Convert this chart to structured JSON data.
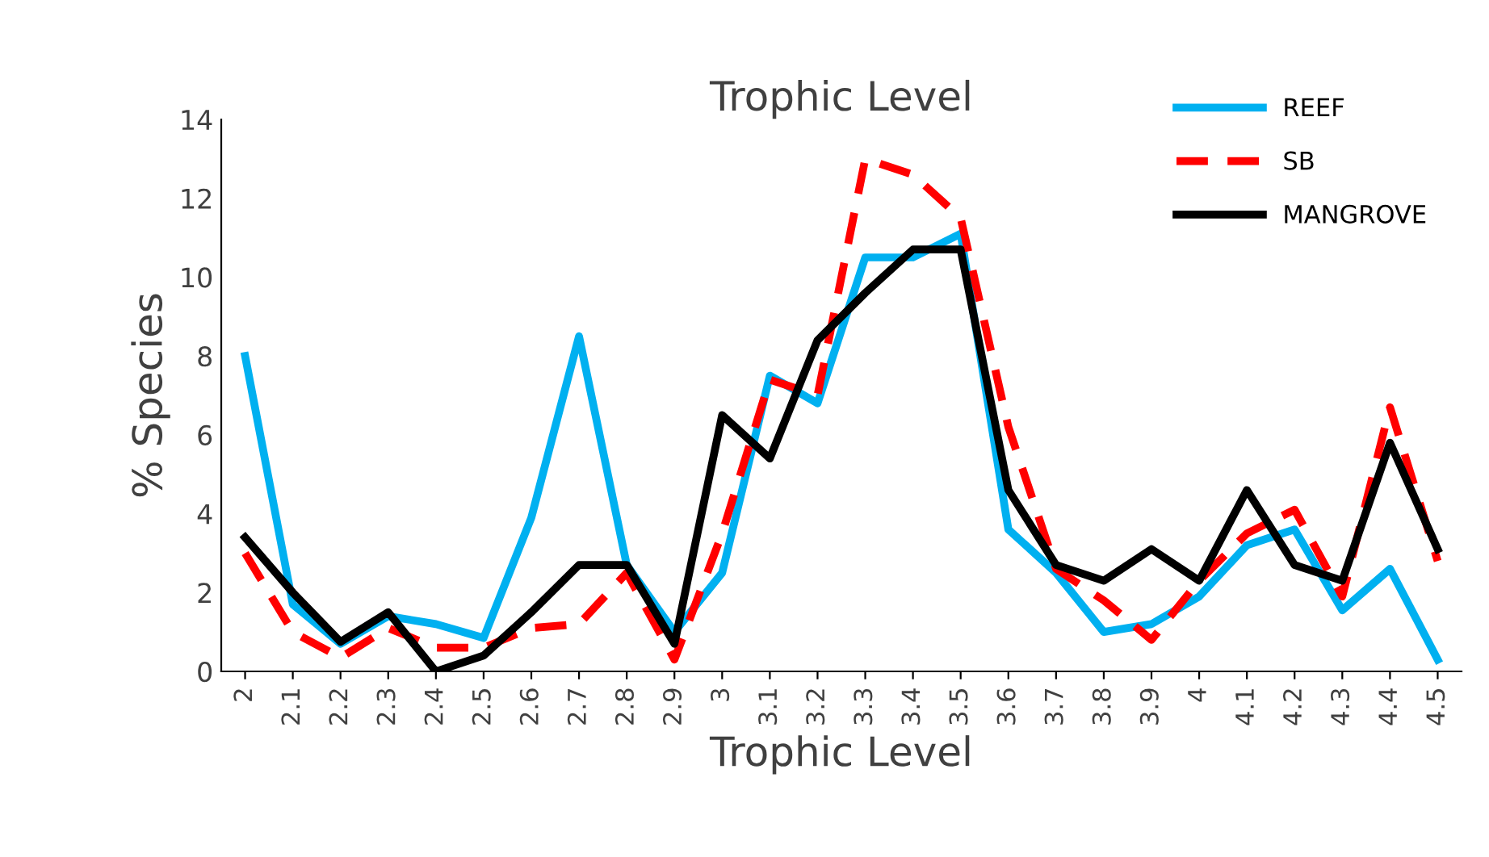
{
  "chart_data": {
    "type": "line",
    "title": "Trophic Level",
    "xlabel": "Trophic Level",
    "ylabel": "% Species",
    "categories": [
      "2",
      "2.1",
      "2.2",
      "2.3",
      "2.4",
      "2.5",
      "2.6",
      "2.7",
      "2.8",
      "2.9",
      "3",
      "3.1",
      "3.2",
      "3.3",
      "3.4",
      "3.5",
      "3.6",
      "3.7",
      "3.8",
      "3.9",
      "4",
      "4.1",
      "4.2",
      "4.3",
      "4.4",
      "4.5"
    ],
    "series": [
      {
        "name": "REEF",
        "color": "#00b0f0",
        "line_style": "solid",
        "values": [
          8.0,
          1.7,
          0.7,
          1.4,
          1.2,
          0.85,
          3.9,
          8.5,
          2.7,
          1.0,
          2.5,
          7.5,
          6.8,
          10.5,
          10.5,
          11.1,
          3.6,
          2.5,
          1.0,
          1.2,
          1.9,
          3.2,
          3.6,
          1.55,
          2.6,
          0.3
        ]
      },
      {
        "name": "SB",
        "color": "#ff0000",
        "line_style": "dashed",
        "values": [
          3.0,
          1.0,
          0.35,
          1.1,
          0.6,
          0.6,
          1.1,
          1.2,
          2.5,
          0.3,
          3.5,
          7.4,
          7.0,
          13.0,
          12.6,
          11.5,
          6.2,
          2.6,
          1.8,
          0.8,
          2.3,
          3.5,
          4.1,
          1.9,
          6.7,
          2.8
        ]
      },
      {
        "name": "MANGROVE",
        "color": "#000000",
        "line_style": "solid",
        "values": [
          3.4,
          2.0,
          0.75,
          1.5,
          0.0,
          0.4,
          1.5,
          2.7,
          2.7,
          0.7,
          6.5,
          5.4,
          8.4,
          9.6,
          10.7,
          10.7,
          4.6,
          2.7,
          2.3,
          3.1,
          2.3,
          4.6,
          2.7,
          2.3,
          5.8,
          3.1
        ]
      }
    ],
    "ylim": [
      0,
      14
    ],
    "yticks": [
      0,
      2,
      4,
      6,
      8,
      10,
      12,
      14
    ],
    "grid": false,
    "legend": "top right",
    "marker": "none"
  }
}
